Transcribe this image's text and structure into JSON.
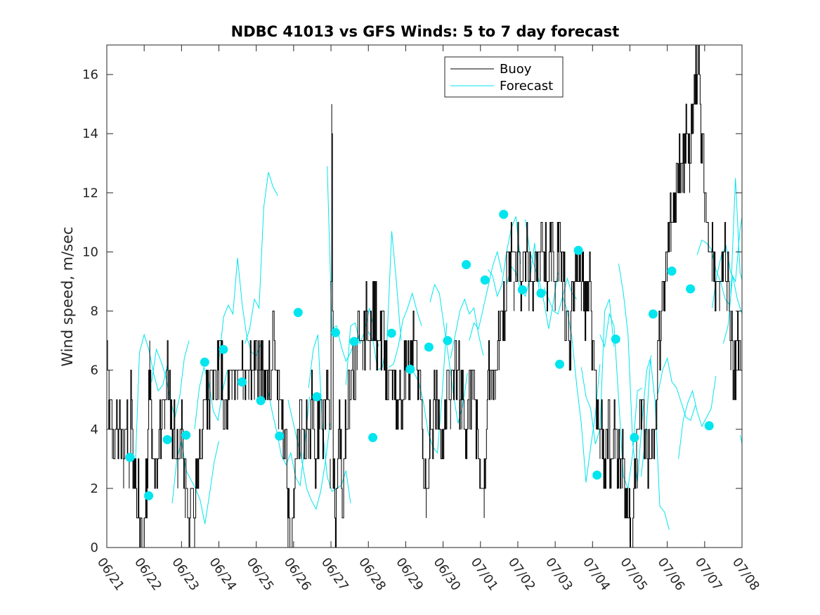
{
  "chart_data": {
    "type": "line",
    "title": "NDBC 41013 vs GFS Winds: 5 to 7 day forecast",
    "ylabel": "Wind speed, m/sec",
    "xlabel": "",
    "ylim": [
      0,
      17
    ],
    "yticks": [
      0,
      2,
      4,
      6,
      8,
      10,
      12,
      14,
      16
    ],
    "xlim_days": [
      0,
      17
    ],
    "xtick_labels": [
      "06/21",
      "06/22",
      "06/23",
      "06/24",
      "06/25",
      "06/26",
      "06/27",
      "06/28",
      "06/29",
      "06/30",
      "07/01",
      "07/02",
      "07/03",
      "07/04",
      "07/05",
      "07/06",
      "07/07",
      "07/08"
    ],
    "legend": {
      "position": "top-center",
      "entries": [
        {
          "name": "Buoy",
          "color": "#000000"
        },
        {
          "name": "Forecast",
          "color": "#00e5ee"
        }
      ]
    },
    "colors": {
      "buoy": "#000000",
      "forecast": "#00e5ee",
      "markers": "#00e5ee"
    },
    "buoy_knots": [
      [
        0.0,
        7
      ],
      [
        0.05,
        5
      ],
      [
        0.15,
        4
      ],
      [
        0.3,
        4
      ],
      [
        0.45,
        3
      ],
      [
        0.55,
        4
      ],
      [
        0.6,
        3
      ],
      [
        0.65,
        5
      ],
      [
        0.7,
        3
      ],
      [
        0.8,
        2
      ],
      [
        0.9,
        1
      ],
      [
        0.95,
        0
      ],
      [
        1.0,
        1
      ],
      [
        1.05,
        2
      ],
      [
        1.1,
        3
      ],
      [
        1.15,
        7
      ],
      [
        1.2,
        4
      ],
      [
        1.3,
        3
      ],
      [
        1.4,
        4
      ],
      [
        1.55,
        5
      ],
      [
        1.65,
        6
      ],
      [
        1.75,
        4
      ],
      [
        1.9,
        3
      ],
      [
        2.0,
        4
      ],
      [
        2.1,
        2
      ],
      [
        2.2,
        1
      ],
      [
        2.35,
        1
      ],
      [
        2.45,
        3
      ],
      [
        2.55,
        4
      ],
      [
        2.7,
        5
      ],
      [
        2.85,
        6
      ],
      [
        3.0,
        6
      ],
      [
        3.2,
        5
      ],
      [
        3.35,
        6
      ],
      [
        3.5,
        6
      ],
      [
        3.65,
        6
      ],
      [
        3.8,
        6
      ],
      [
        3.95,
        6
      ],
      [
        4.1,
        6
      ],
      [
        4.2,
        6
      ],
      [
        4.35,
        6
      ],
      [
        4.5,
        7
      ],
      [
        4.6,
        5
      ],
      [
        4.75,
        4
      ],
      [
        4.85,
        1
      ],
      [
        4.92,
        0
      ],
      [
        5.0,
        2
      ],
      [
        5.1,
        4
      ],
      [
        5.2,
        4
      ],
      [
        5.3,
        4
      ],
      [
        5.4,
        4
      ],
      [
        5.5,
        5
      ],
      [
        5.6,
        3
      ],
      [
        5.7,
        5
      ],
      [
        5.8,
        4
      ],
      [
        5.9,
        6
      ],
      [
        5.98,
        3
      ],
      [
        6.02,
        15
      ],
      [
        6.06,
        3
      ],
      [
        6.12,
        1
      ],
      [
        6.2,
        4
      ],
      [
        6.3,
        2
      ],
      [
        6.4,
        4
      ],
      [
        6.5,
        5
      ],
      [
        6.6,
        6
      ],
      [
        6.7,
        7
      ],
      [
        6.85,
        7
      ],
      [
        6.95,
        8
      ],
      [
        7.05,
        7
      ],
      [
        7.15,
        8
      ],
      [
        7.25,
        7
      ],
      [
        7.35,
        7
      ],
      [
        7.5,
        6
      ],
      [
        7.65,
        6
      ],
      [
        7.8,
        5
      ],
      [
        7.9,
        5
      ],
      [
        8.0,
        6
      ],
      [
        8.1,
        6
      ],
      [
        8.2,
        7
      ],
      [
        8.35,
        6
      ],
      [
        8.45,
        4
      ],
      [
        8.55,
        2
      ],
      [
        8.65,
        4
      ],
      [
        8.8,
        5
      ],
      [
        8.95,
        4
      ],
      [
        9.1,
        5
      ],
      [
        9.2,
        5
      ],
      [
        9.35,
        6
      ],
      [
        9.5,
        5
      ],
      [
        9.6,
        4
      ],
      [
        9.7,
        5
      ],
      [
        9.8,
        6
      ],
      [
        9.9,
        4
      ],
      [
        10.0,
        3
      ],
      [
        10.1,
        2
      ],
      [
        10.2,
        6
      ],
      [
        10.3,
        6
      ],
      [
        10.4,
        6
      ],
      [
        10.5,
        7
      ],
      [
        10.6,
        8
      ],
      [
        10.7,
        9
      ],
      [
        10.8,
        10
      ],
      [
        10.9,
        9
      ],
      [
        11.0,
        10
      ],
      [
        11.1,
        9
      ],
      [
        11.2,
        10
      ],
      [
        11.3,
        9
      ],
      [
        11.4,
        9
      ],
      [
        11.5,
        10
      ],
      [
        11.6,
        10
      ],
      [
        11.7,
        10
      ],
      [
        11.8,
        9
      ],
      [
        11.9,
        10
      ],
      [
        12.0,
        9
      ],
      [
        12.1,
        10
      ],
      [
        12.2,
        9
      ],
      [
        12.3,
        8
      ],
      [
        12.4,
        7
      ],
      [
        12.5,
        9
      ],
      [
        12.6,
        10
      ],
      [
        12.7,
        9
      ],
      [
        12.8,
        8
      ],
      [
        12.9,
        9
      ],
      [
        13.0,
        7
      ],
      [
        13.1,
        5
      ],
      [
        13.2,
        4
      ],
      [
        13.3,
        3
      ],
      [
        13.4,
        4
      ],
      [
        13.5,
        3
      ],
      [
        13.6,
        4
      ],
      [
        13.7,
        3
      ],
      [
        13.8,
        3
      ],
      [
        13.9,
        2
      ],
      [
        14.0,
        1
      ],
      [
        14.05,
        0
      ],
      [
        14.1,
        2
      ],
      [
        14.2,
        3
      ],
      [
        14.3,
        5
      ],
      [
        14.4,
        4
      ],
      [
        14.5,
        3
      ],
      [
        14.6,
        4
      ],
      [
        14.7,
        5
      ],
      [
        14.8,
        7
      ],
      [
        14.9,
        9
      ],
      [
        15.0,
        10
      ],
      [
        15.1,
        11
      ],
      [
        15.2,
        12
      ],
      [
        15.3,
        13
      ],
      [
        15.4,
        13
      ],
      [
        15.5,
        14
      ],
      [
        15.6,
        13
      ],
      [
        15.7,
        15
      ],
      [
        15.8,
        16
      ],
      [
        15.85,
        17
      ],
      [
        15.9,
        14
      ],
      [
        16.0,
        12
      ],
      [
        16.1,
        11
      ],
      [
        16.2,
        10
      ],
      [
        16.3,
        9
      ],
      [
        16.4,
        9
      ],
      [
        16.5,
        10
      ],
      [
        16.6,
        9
      ],
      [
        16.7,
        7
      ],
      [
        16.8,
        6
      ],
      [
        16.9,
        7
      ],
      [
        17.0,
        5
      ]
    ],
    "forecast_series": [
      {
        "start": 0.75,
        "values": [
          2.3,
          6.6,
          7.2,
          6.7,
          5.9,
          5.3,
          5.5,
          6.2
        ]
      },
      {
        "start": 1.2,
        "values": [
          5.6,
          6.7,
          6.3,
          5.8,
          5.0,
          4.4,
          5.1,
          6.4,
          7.0
        ]
      },
      {
        "start": 1.75,
        "values": [
          1.5,
          3.0,
          3.6,
          2.6,
          2.3,
          2.0,
          1.6,
          0.8,
          1.8,
          2.9,
          3.6
        ]
      },
      {
        "start": 2.35,
        "values": [
          4.0,
          5.4,
          6.1,
          5.6,
          4.6,
          4.3,
          5.3,
          6.0
        ]
      },
      {
        "start": 3.0,
        "values": [
          6.3,
          7.8,
          8.2,
          7.9,
          9.8,
          8.2,
          7.1,
          6.6,
          6.5,
          6.9
        ]
      },
      {
        "start": 3.7,
        "values": [
          6.9,
          7.4,
          8.4,
          8.1,
          11.5,
          12.7,
          12.2,
          11.9
        ]
      },
      {
        "start": 4.3,
        "values": [
          5.4,
          4.6,
          3.9,
          3.1,
          2.8,
          3.2,
          2.4,
          2.1,
          3.5,
          5.1
        ]
      },
      {
        "start": 4.85,
        "values": [
          5.0,
          4.3,
          3.6,
          2.9,
          2.0,
          1.6,
          1.3,
          1.9,
          2.9,
          4.2
        ]
      },
      {
        "start": 5.4,
        "values": [
          5.4,
          6.7,
          7.2,
          4.0,
          2.4,
          1.9,
          2.0,
          2.1,
          2.6,
          1.5
        ]
      },
      {
        "start": 5.9,
        "values": [
          12.9,
          7.4,
          7.5,
          6.8,
          6.3,
          6.6,
          7.0,
          7.2
        ]
      },
      {
        "start": 6.4,
        "values": [
          5.5,
          7.5,
          7.6,
          6.9,
          7.3,
          8.1,
          7.4,
          6.8
        ]
      },
      {
        "start": 7.0,
        "values": [
          7.3,
          7.0,
          6.0,
          6.1,
          7.0,
          10.7,
          9.0,
          7.0
        ]
      },
      {
        "start": 7.55,
        "values": [
          6.1,
          6.2,
          6.8,
          7.7,
          8.1,
          8.6,
          8.0,
          7.5
        ]
      },
      {
        "start": 8.1,
        "values": [
          6.3,
          5.9,
          5.6,
          4.9,
          3.9,
          3.4,
          3.2,
          5.2,
          7.6
        ]
      },
      {
        "start": 8.65,
        "values": [
          8.3,
          8.9,
          8.6,
          7.5,
          6.4,
          5.2,
          4.2,
          4.8,
          5.9
        ]
      },
      {
        "start": 9.2,
        "values": [
          6.4,
          7.2,
          8.0,
          8.4,
          7.9,
          8.1,
          7.2,
          6.5
        ]
      },
      {
        "start": 9.7,
        "values": [
          7.0,
          7.6,
          7.4,
          8.1,
          8.8,
          9.5,
          10.0,
          9.3
        ]
      },
      {
        "start": 10.2,
        "values": [
          9.4,
          9.2,
          8.5,
          8.9,
          10.0,
          10.8,
          11.2,
          9.6
        ]
      },
      {
        "start": 10.7,
        "values": [
          8.9,
          9.5,
          9.3,
          8.7,
          8.5,
          9.1,
          10.3,
          8.6
        ]
      },
      {
        "start": 11.2,
        "values": [
          11.1,
          10.0,
          9.5,
          9.0,
          8.3,
          7.4,
          8.3,
          9.3
        ]
      },
      {
        "start": 11.7,
        "values": [
          8.8,
          8.4,
          8.0,
          7.9,
          8.5,
          9.1,
          8.6,
          8.4
        ]
      },
      {
        "start": 12.2,
        "values": [
          8.5,
          8.0,
          7.1,
          5.5,
          4.2,
          2.2,
          3.4,
          4.5,
          6.2
        ]
      },
      {
        "start": 12.7,
        "values": [
          6.1,
          5.1,
          4.7,
          3.5,
          4.0,
          8.0,
          8.4,
          6.8
        ]
      },
      {
        "start": 13.2,
        "values": [
          7.2,
          6.8,
          7.9,
          7.5,
          5.0,
          2.4,
          2.0,
          3.2,
          5.3,
          5.4
        ]
      },
      {
        "start": 13.7,
        "values": [
          9.6,
          8.6,
          7.2,
          3.5,
          2.2,
          4.3,
          6.0,
          6.5
        ]
      },
      {
        "start": 14.3,
        "values": [
          2.4,
          3.8,
          6.4,
          4.9,
          1.4,
          1.2,
          0.6
        ]
      },
      {
        "start": 14.75,
        "values": [
          5.2,
          6.0,
          6.4,
          5.6,
          5.4,
          4.9,
          4.4,
          4.3,
          4.8
        ]
      },
      {
        "start": 15.3,
        "values": [
          3.0,
          4.3,
          4.9,
          5.3,
          4.6,
          4.1,
          4.4,
          4.7,
          5.8
        ]
      },
      {
        "start": 15.8,
        "values": [
          9.9,
          10.4,
          10.3,
          10.1,
          9.4,
          9.0,
          8.4,
          8.2
        ]
      },
      {
        "start": 16.2,
        "values": [
          8.1,
          9.2,
          9.9,
          10.2,
          9.3,
          9.0,
          10.8,
          11.7,
          11.5
        ]
      },
      {
        "start": 16.7,
        "values": [
          8.6,
          12.5,
          9.3,
          8.7,
          9.2,
          9.5,
          9.1,
          8.9
        ]
      },
      {
        "start": 16.95,
        "values": [
          3.8,
          3.1,
          0.4,
          2.0,
          3.6,
          3.9
        ]
      },
      {
        "start": 16.5,
        "values": [
          6.9,
          7.5,
          9.2,
          8.4,
          7.9,
          9.2
        ]
      }
    ],
    "markers": [
      [
        0.62,
        3.05
      ],
      [
        1.12,
        1.75
      ],
      [
        1.62,
        3.65
      ],
      [
        2.12,
        3.8
      ],
      [
        2.62,
        6.27
      ],
      [
        3.12,
        6.7
      ],
      [
        3.62,
        5.6
      ],
      [
        4.12,
        4.97
      ],
      [
        4.62,
        3.77
      ],
      [
        5.12,
        7.95
      ],
      [
        5.62,
        5.1
      ],
      [
        6.12,
        7.27
      ],
      [
        6.62,
        6.97
      ],
      [
        7.12,
        3.72
      ],
      [
        7.62,
        7.25
      ],
      [
        8.12,
        6.03
      ],
      [
        8.62,
        6.78
      ],
      [
        9.12,
        7.0
      ],
      [
        9.62,
        9.57
      ],
      [
        10.12,
        9.05
      ],
      [
        10.62,
        11.27
      ],
      [
        11.12,
        8.72
      ],
      [
        11.62,
        8.6
      ],
      [
        12.12,
        6.2
      ],
      [
        12.62,
        10.05
      ],
      [
        13.12,
        2.45
      ],
      [
        13.62,
        7.05
      ],
      [
        14.12,
        3.72
      ],
      [
        14.62,
        7.9
      ],
      [
        15.12,
        9.35
      ],
      [
        15.62,
        8.75
      ],
      [
        16.12,
        4.12
      ]
    ]
  }
}
